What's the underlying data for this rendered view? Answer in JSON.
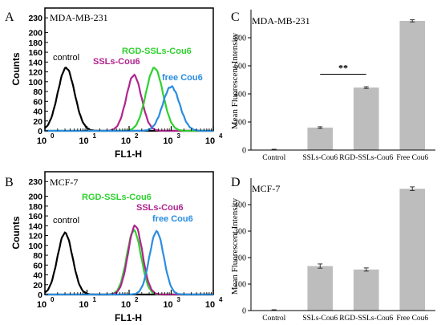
{
  "panels": {
    "A": {
      "letter": "A"
    },
    "B": {
      "letter": "B"
    },
    "C": {
      "letter": "C"
    },
    "D": {
      "letter": "D"
    }
  },
  "chart_data": [
    {
      "id": "A",
      "type": "line",
      "title": "MDA-MB-231",
      "xlabel": "FL1-H",
      "ylabel": "Counts",
      "xscale": "log",
      "xlim": [
        1,
        10000
      ],
      "xticks": [
        "10",
        "10",
        "10",
        "10",
        "10"
      ],
      "xtick_exponents": [
        "0",
        "1",
        "2",
        "3",
        "4"
      ],
      "ylim": [
        0,
        250
      ],
      "yticks": [
        "0",
        "20",
        "40",
        "60",
        "80",
        "100",
        "120",
        "140",
        "160",
        "180",
        "200",
        "230"
      ],
      "series": [
        {
          "name": "control",
          "color": "#000000",
          "peak_x": 3.2,
          "peak_y": 128,
          "log_width": 0.2
        },
        {
          "name": "SSLs-Cou6",
          "color": "#b0248f",
          "peak_x": 130,
          "peak_y": 113,
          "log_width": 0.18
        },
        {
          "name": "RGD-SSLs-Cou6",
          "color": "#2fd12f",
          "peak_x": 400,
          "peak_y": 128,
          "log_width": 0.2
        },
        {
          "name": "free Cou6",
          "color": "#2a8de0",
          "peak_x": 1000,
          "peak_y": 90,
          "log_width": 0.2
        }
      ]
    },
    {
      "id": "B",
      "type": "line",
      "title": "MCF-7",
      "xlabel": "FL1-H",
      "ylabel": "Counts",
      "xscale": "log",
      "xlim": [
        1,
        10000
      ],
      "xticks": [
        "10",
        "10",
        "10",
        "10",
        "10"
      ],
      "xtick_exponents": [
        "0",
        "1",
        "2",
        "3",
        "4"
      ],
      "ylim": [
        0,
        250
      ],
      "yticks": [
        "0",
        "20",
        "40",
        "60",
        "80",
        "100",
        "120",
        "140",
        "160",
        "180",
        "200",
        "230"
      ],
      "series": [
        {
          "name": "control",
          "color": "#000000",
          "peak_x": 3.0,
          "peak_y": 125,
          "log_width": 0.18
        },
        {
          "name": "RGD-SSLs-Cou6",
          "color": "#2fd12f",
          "peak_x": 130,
          "peak_y": 130,
          "log_width": 0.17
        },
        {
          "name": "SSLs-Cou6",
          "color": "#b0248f",
          "peak_x": 140,
          "peak_y": 140,
          "log_width": 0.17
        },
        {
          "name": "free Cou6",
          "color": "#2a8de0",
          "peak_x": 450,
          "peak_y": 128,
          "log_width": 0.17
        }
      ]
    },
    {
      "id": "C",
      "type": "bar",
      "title": "MDA-MB-231",
      "ylabel": "Mean Fluorescent Intensity",
      "categories": [
        "Control",
        "SSLs-Cou6",
        "RGD-SSLs-Cou6",
        "Free Cou6"
      ],
      "values": [
        0,
        160,
        445,
        920
      ],
      "errors": [
        0,
        6,
        6,
        8
      ],
      "ylim": [
        0,
        1000
      ],
      "yticks": [
        "0",
        "200",
        "400",
        "600",
        "800"
      ],
      "annotation": "**",
      "bar_color": "#bdbdbd"
    },
    {
      "id": "D",
      "type": "bar",
      "title": "MCF-7",
      "ylabel": "Mean Fluorescent Intensity",
      "categories": [
        "Control",
        "SSLs-Cou6",
        "RGD-SSLs-Cou6",
        "Free Cou6"
      ],
      "values": [
        0,
        168,
        155,
        460
      ],
      "errors": [
        0,
        8,
        6,
        7
      ],
      "ylim": [
        0,
        500
      ],
      "yticks": [
        "0",
        "100",
        "200",
        "300",
        "400"
      ],
      "bar_color": "#bdbdbd"
    }
  ]
}
